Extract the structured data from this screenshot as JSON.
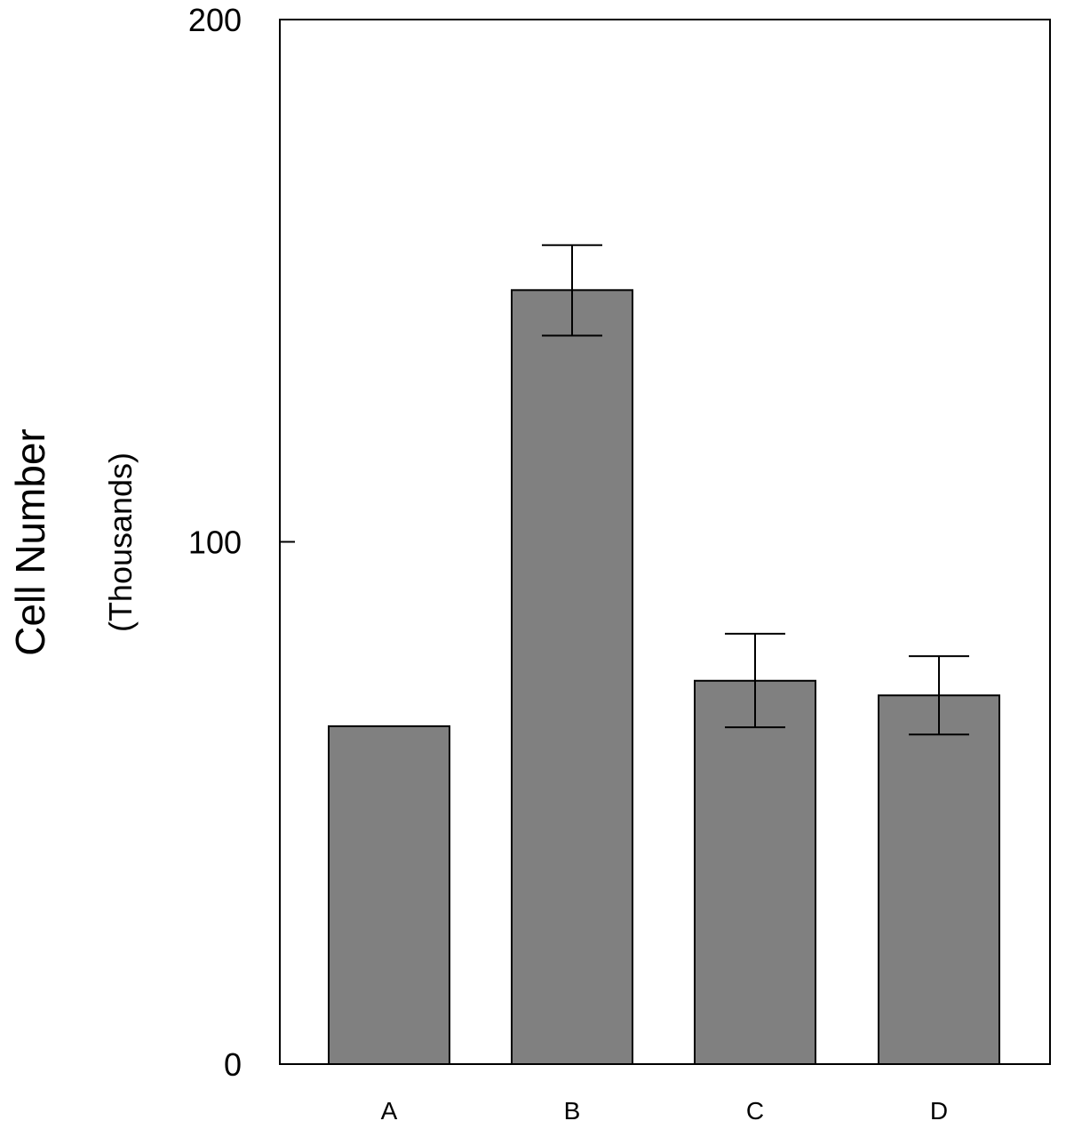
{
  "chart_data": {
    "type": "bar",
    "title": "",
    "xlabel": "",
    "ylabel": "Cell Number",
    "ylabel_unit": "(Thousands)",
    "categories": [
      "A",
      "B",
      "C",
      "D"
    ],
    "values": [
      64.7,
      148.2,
      73.4,
      70.6
    ],
    "error_bars": [
      {
        "low": 64.7,
        "high": 64.7
      },
      {
        "low": 139.5,
        "high": 156.8
      },
      {
        "low": 64.5,
        "high": 82.4
      },
      {
        "low": 63.1,
        "high": 78.1
      }
    ],
    "ylim": [
      0,
      200
    ],
    "yticks": [
      0,
      100,
      200
    ],
    "ytick_labels": [
      "0",
      "100",
      "200"
    ],
    "grid": false,
    "legend": "none",
    "colors": {
      "bar_fill": "#808080",
      "bar_stroke": "#000000",
      "axis": "#000000",
      "background": "#ffffff"
    }
  }
}
